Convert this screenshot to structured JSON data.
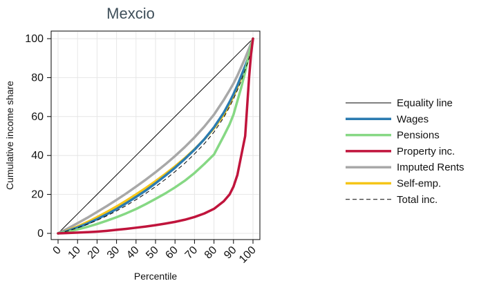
{
  "chart_data": {
    "type": "line",
    "title": "Mexcio",
    "xlabel": "Percentile",
    "ylabel": "Cumulative income share",
    "xlim": [
      0,
      100
    ],
    "ylim": [
      0,
      100
    ],
    "xticks": [
      0,
      10,
      20,
      30,
      40,
      50,
      60,
      70,
      80,
      90,
      100
    ],
    "yticks": [
      0,
      20,
      40,
      60,
      80,
      100
    ],
    "grid": true,
    "legend_position": "right",
    "x": [
      0,
      5,
      10,
      15,
      20,
      25,
      30,
      35,
      40,
      45,
      50,
      55,
      60,
      65,
      70,
      75,
      80,
      85,
      88,
      90,
      92,
      94,
      96,
      98,
      99,
      100
    ],
    "series": [
      {
        "name": "Equality line",
        "color": "#000000",
        "dash": "solid",
        "width": 1,
        "values": [
          0,
          5,
          10,
          15,
          20,
          25,
          30,
          35,
          40,
          45,
          50,
          55,
          60,
          65,
          70,
          75,
          80,
          85,
          88,
          90,
          92,
          94,
          96,
          98,
          99,
          100
        ]
      },
      {
        "name": "Wages",
        "color": "#2b7bb0",
        "dash": "solid",
        "width": 3.5,
        "values": [
          0,
          1.3,
          3,
          5,
          7.3,
          9.8,
          12.5,
          15.5,
          18.7,
          22,
          25.7,
          29.6,
          33.7,
          38.2,
          43,
          48.3,
          54.5,
          62,
          67.5,
          71.5,
          76,
          81,
          86,
          91,
          94,
          100
        ]
      },
      {
        "name": "Pensions",
        "color": "#86d884",
        "dash": "solid",
        "width": 3.5,
        "values": [
          0,
          0.8,
          2,
          3.3,
          4.8,
          6.5,
          8.3,
          10.3,
          12.5,
          15,
          17.7,
          20.5,
          23.6,
          27,
          31,
          35.6,
          40.5,
          50,
          56,
          61,
          68,
          75,
          83,
          92,
          96,
          100
        ]
      },
      {
        "name": "Property inc.",
        "color": "#c0143c",
        "dash": "solid",
        "width": 3.5,
        "values": [
          0,
          0.2,
          0.4,
          0.6,
          0.9,
          1.3,
          1.8,
          2.3,
          2.9,
          3.5,
          4.2,
          5.0,
          5.9,
          7.0,
          8.4,
          10.2,
          12.6,
          16.5,
          20,
          24,
          30,
          40,
          50,
          80,
          92,
          100
        ]
      },
      {
        "name": "Imputed Rents",
        "color": "#a8a8a8",
        "dash": "solid",
        "width": 3.5,
        "values": [
          0,
          2.5,
          5.2,
          8,
          11,
          14,
          17.2,
          20.5,
          24,
          27.6,
          31.4,
          35.4,
          39.7,
          44.3,
          49.3,
          54.8,
          61,
          68.5,
          73.5,
          77,
          81,
          85.5,
          90,
          95,
          97.5,
          100
        ]
      },
      {
        "name": "Self-emp.",
        "color": "#f5c518",
        "dash": "solid",
        "width": 3.5,
        "values": [
          0,
          1.6,
          3.5,
          5.8,
          8.3,
          11,
          13.8,
          16.8,
          20,
          23.3,
          26.8,
          30.5,
          34.4,
          38.6,
          43.2,
          48.3,
          54,
          61,
          66.5,
          70.5,
          75,
          80,
          85.5,
          91.5,
          95,
          100
        ]
      },
      {
        "name": "Total inc.",
        "color": "#000000",
        "dash": "dashed",
        "width": 1,
        "values": [
          0,
          1.2,
          2.8,
          4.6,
          6.7,
          9,
          11.5,
          14.3,
          17.3,
          20.5,
          24,
          27.7,
          31.7,
          36,
          40.8,
          46,
          52,
          59.5,
          65,
          69,
          73.5,
          78.5,
          84,
          90,
          93.5,
          100
        ]
      }
    ]
  }
}
